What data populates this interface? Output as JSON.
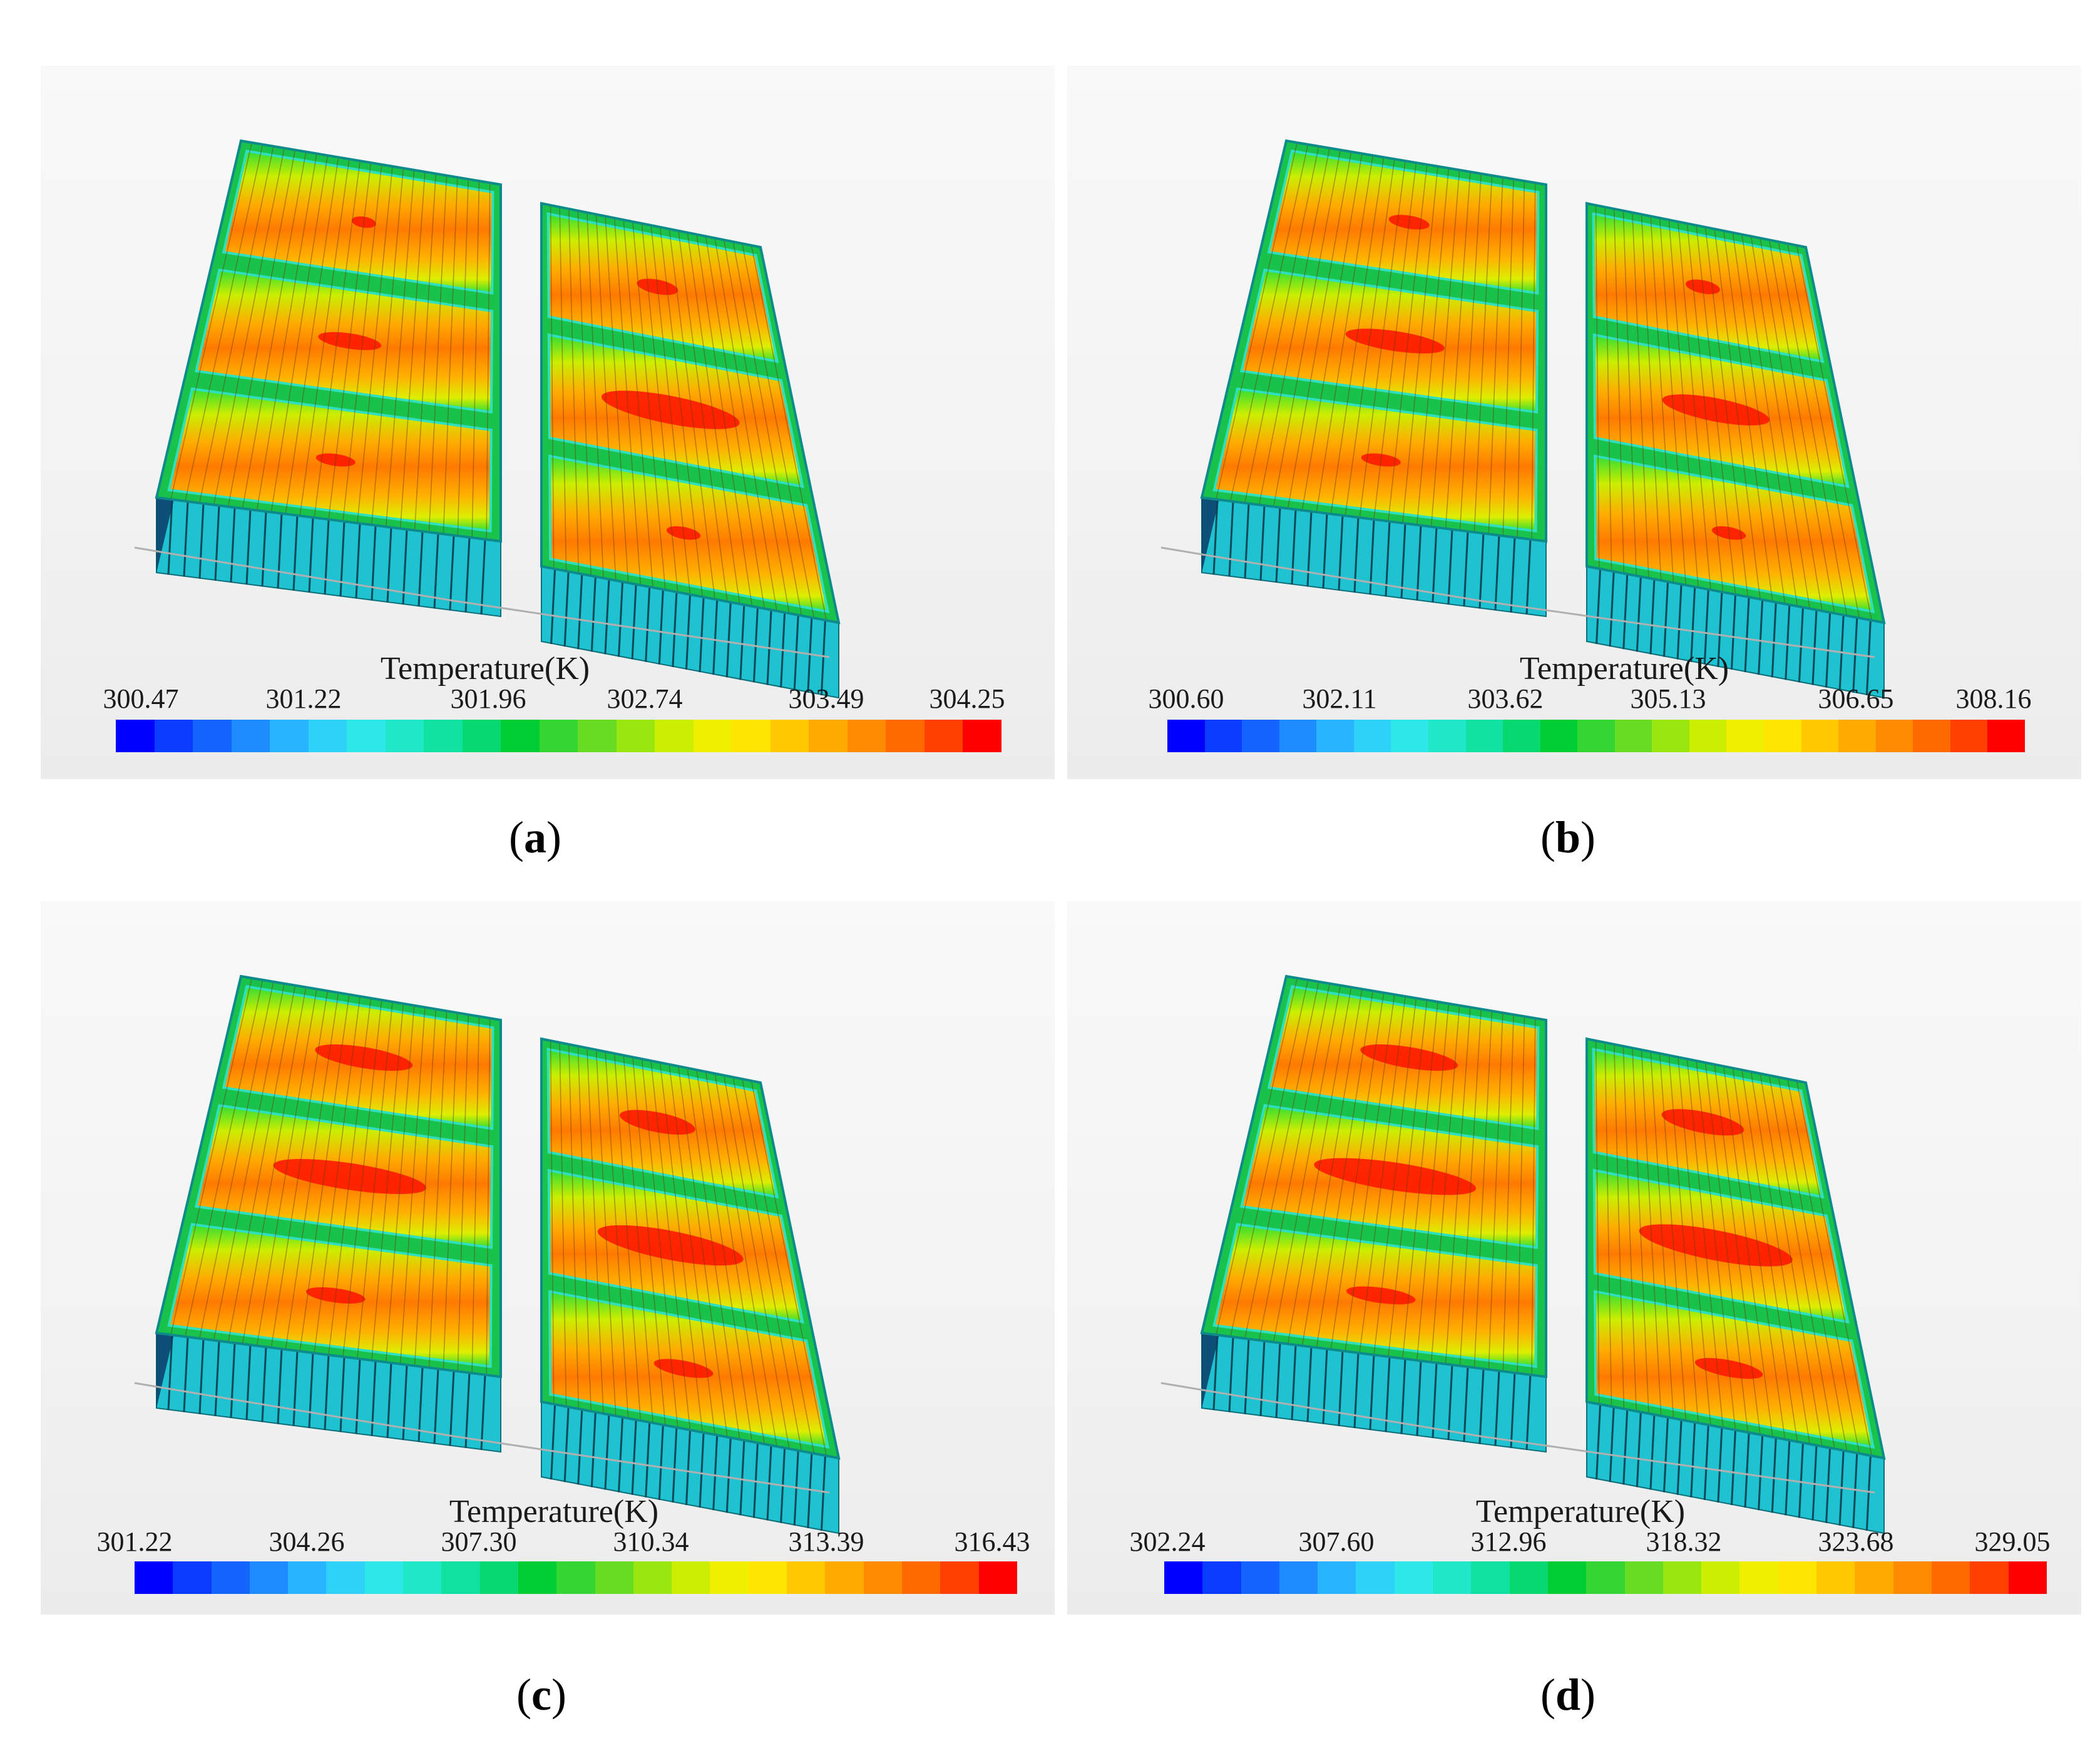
{
  "panels": [
    {
      "label_open": "(",
      "label_letter": "a",
      "label_close": ")",
      "colorbar_title": "Temperature(K)",
      "ticks": [
        "300.47",
        "301.22",
        "301.96",
        "302.74",
        "303.49",
        "304.25"
      ]
    },
    {
      "label_open": "(",
      "label_letter": "b",
      "label_close": ")",
      "colorbar_title": "Temperature(K)",
      "ticks": [
        "300.60",
        "302.11",
        "303.62",
        "305.13",
        "306.65",
        "308.16"
      ]
    },
    {
      "label_open": "(",
      "label_letter": "c",
      "label_close": ")",
      "colorbar_title": "Temperature(K)",
      "ticks": [
        "301.22",
        "304.26",
        "307.30",
        "310.34",
        "313.39",
        "316.43"
      ]
    },
    {
      "label_open": "(",
      "label_letter": "d",
      "label_close": ")",
      "colorbar_title": "Temperature(K)",
      "ticks": [
        "302.24",
        "307.60",
        "312.96",
        "318.32",
        "323.68",
        "329.05"
      ]
    }
  ],
  "colormap": [
    "#0000ff",
    "#0a3cff",
    "#1464ff",
    "#1e8cff",
    "#28b4ff",
    "#2ed2f8",
    "#2ee8e8",
    "#1ee8c8",
    "#10e0a0",
    "#08d870",
    "#00cc33",
    "#33d633",
    "#66dd22",
    "#99e611",
    "#ccee00",
    "#eef000",
    "#ffe600",
    "#ffc800",
    "#ffaa00",
    "#ff8c00",
    "#ff6a00",
    "#ff4000",
    "#ff0000"
  ]
}
